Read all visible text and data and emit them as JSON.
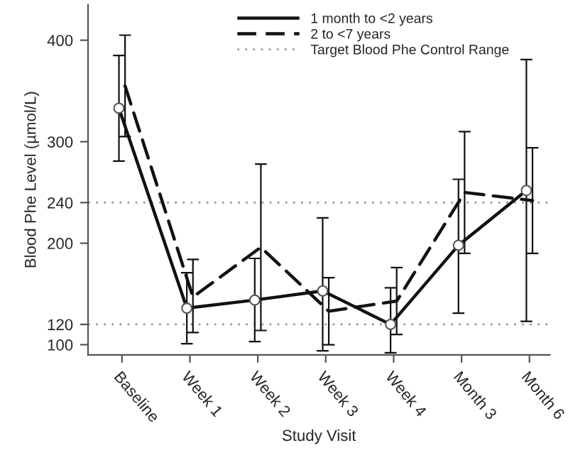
{
  "chart_data": {
    "type": "line",
    "xlabel": "Study Visit",
    "ylabel": "Blood Phe Level (µmol/L)",
    "categories": [
      "Baseline",
      "Week 1",
      "Week 2",
      "Week 3",
      "Week 4",
      "Month 3",
      "Month 6"
    ],
    "series": [
      {
        "name": "1 month to <2 years",
        "color": "#111111",
        "line_style": "solid",
        "marker": "circle",
        "values": [
          333,
          136,
          144,
          153,
          120,
          198,
          252
        ],
        "errors": [
          [
            281,
            385
          ],
          [
            101,
            171
          ],
          [
            103,
            185
          ],
          [
            94,
            225
          ],
          [
            92,
            156
          ],
          [
            131,
            263
          ],
          [
            123,
            381
          ]
        ]
      },
      {
        "name": "2 to <7 years",
        "color": "#111111",
        "line_style": "dashed",
        "marker": "none",
        "values": [
          355,
          147,
          196,
          133,
          143,
          250,
          242
        ],
        "errors": [
          [
            305,
            405
          ],
          [
            112,
            184
          ],
          [
            114,
            278
          ],
          [
            100,
            166
          ],
          [
            110,
            176
          ],
          [
            190,
            310
          ],
          [
            190,
            294
          ]
        ]
      }
    ],
    "ref_lines": [
      {
        "axis": "y",
        "value": 120,
        "label": "Target Blood Phe Control Range",
        "color": "#999999",
        "line_style": "dotted"
      },
      {
        "axis": "y",
        "value": 240,
        "label": null,
        "color": "#999999",
        "line_style": "dotted"
      }
    ],
    "ylim": [
      90,
      435
    ],
    "yticks": [
      100,
      120,
      200,
      240,
      300,
      400
    ],
    "grid": false,
    "legend": "top right"
  }
}
